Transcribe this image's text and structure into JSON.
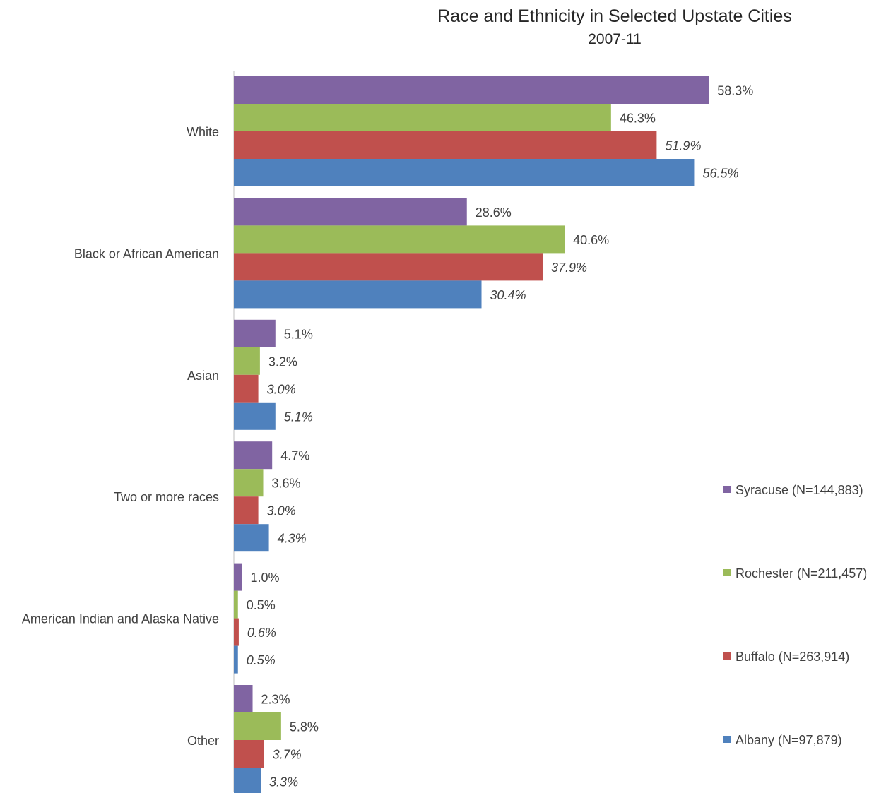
{
  "chart_data": {
    "type": "bar",
    "orientation": "horizontal",
    "title": "Race and Ethnicity in Selected Upstate Cities",
    "subtitle": "2007-11",
    "categories": [
      "White",
      "Black or African American",
      "Asian",
      "Two or more races",
      "American Indian and Alaska Native",
      "Other"
    ],
    "series": [
      {
        "name": "Syracuse (N=144,883)",
        "color": "#8064a2",
        "values": [
          58.3,
          28.6,
          5.1,
          4.7,
          1.0,
          2.3
        ],
        "labels": [
          "58.3%",
          "28.6%",
          "5.1%",
          "4.7%",
          "1.0%",
          "2.3%"
        ],
        "label_style": "normal"
      },
      {
        "name": "Rochester (N=211,457)",
        "color": "#9bbb59",
        "values": [
          46.3,
          40.6,
          3.2,
          3.6,
          0.5,
          5.8
        ],
        "labels": [
          "46.3%",
          "40.6%",
          "3.2%",
          "3.6%",
          "0.5%",
          "5.8%"
        ],
        "label_style": "normal"
      },
      {
        "name": "Buffalo (N=263,914)",
        "color": "#c0504d",
        "values": [
          51.9,
          37.9,
          3.0,
          3.0,
          0.6,
          3.7
        ],
        "labels": [
          "51.9%",
          "37.9%",
          "3.0%",
          "3.0%",
          "0.6%",
          "3.7%"
        ],
        "label_style": "italic"
      },
      {
        "name": "Albany (N=97,879)",
        "color": "#4f81bd",
        "values": [
          56.5,
          30.4,
          5.1,
          4.3,
          0.5,
          3.3
        ],
        "labels": [
          "56.5%",
          "30.4%",
          "5.1%",
          "4.3%",
          "0.5%",
          "3.3%"
        ],
        "label_style": "italic"
      }
    ],
    "xlim": [
      0,
      60
    ],
    "grid": false,
    "legend_position": "right",
    "axis_line_color": "#bfbfbf",
    "text_color": "#404040"
  }
}
